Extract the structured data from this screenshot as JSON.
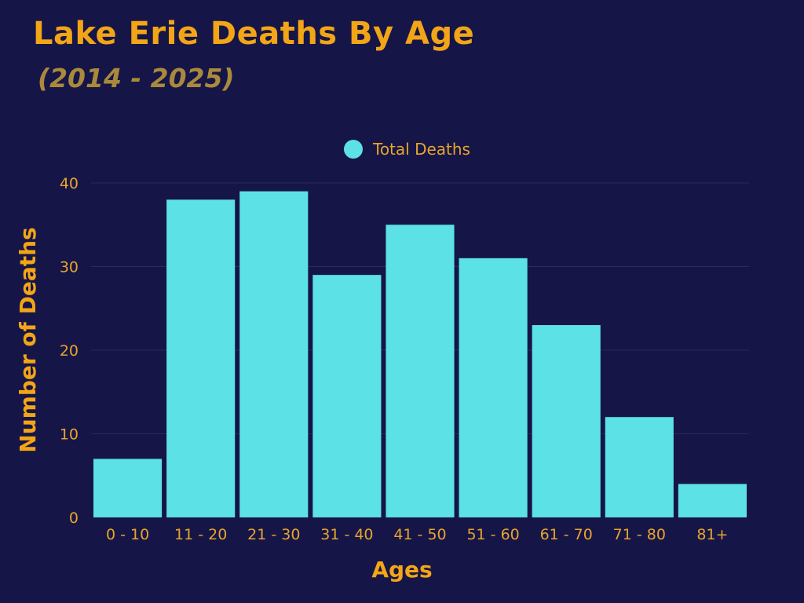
{
  "chart_data": {
    "type": "bar",
    "title": "Lake Erie Deaths By Age",
    "subtitle": "(2014 - 2025)",
    "xlabel": "Ages",
    "ylabel": "Number of Deaths",
    "categories": [
      "0 - 10",
      "11 - 20",
      "21 - 30",
      "31 - 40",
      "41 - 50",
      "51 - 60",
      "61 - 70",
      "71 - 80",
      "81+"
    ],
    "series": [
      {
        "name": "Total Deaths",
        "values": [
          7,
          38,
          39,
          29,
          35,
          31,
          23,
          12,
          4
        ]
      }
    ],
    "ylim": [
      0,
      40
    ],
    "yticks": [
      "0",
      "10",
      "20",
      "30",
      "40"
    ],
    "grid": true,
    "legend_position": "top-center",
    "colors": {
      "background": "#161548",
      "bar": "#5ce1e6",
      "text": "#f2a516",
      "subtitle": "#a98a3c",
      "grid": "#2a2960"
    }
  }
}
